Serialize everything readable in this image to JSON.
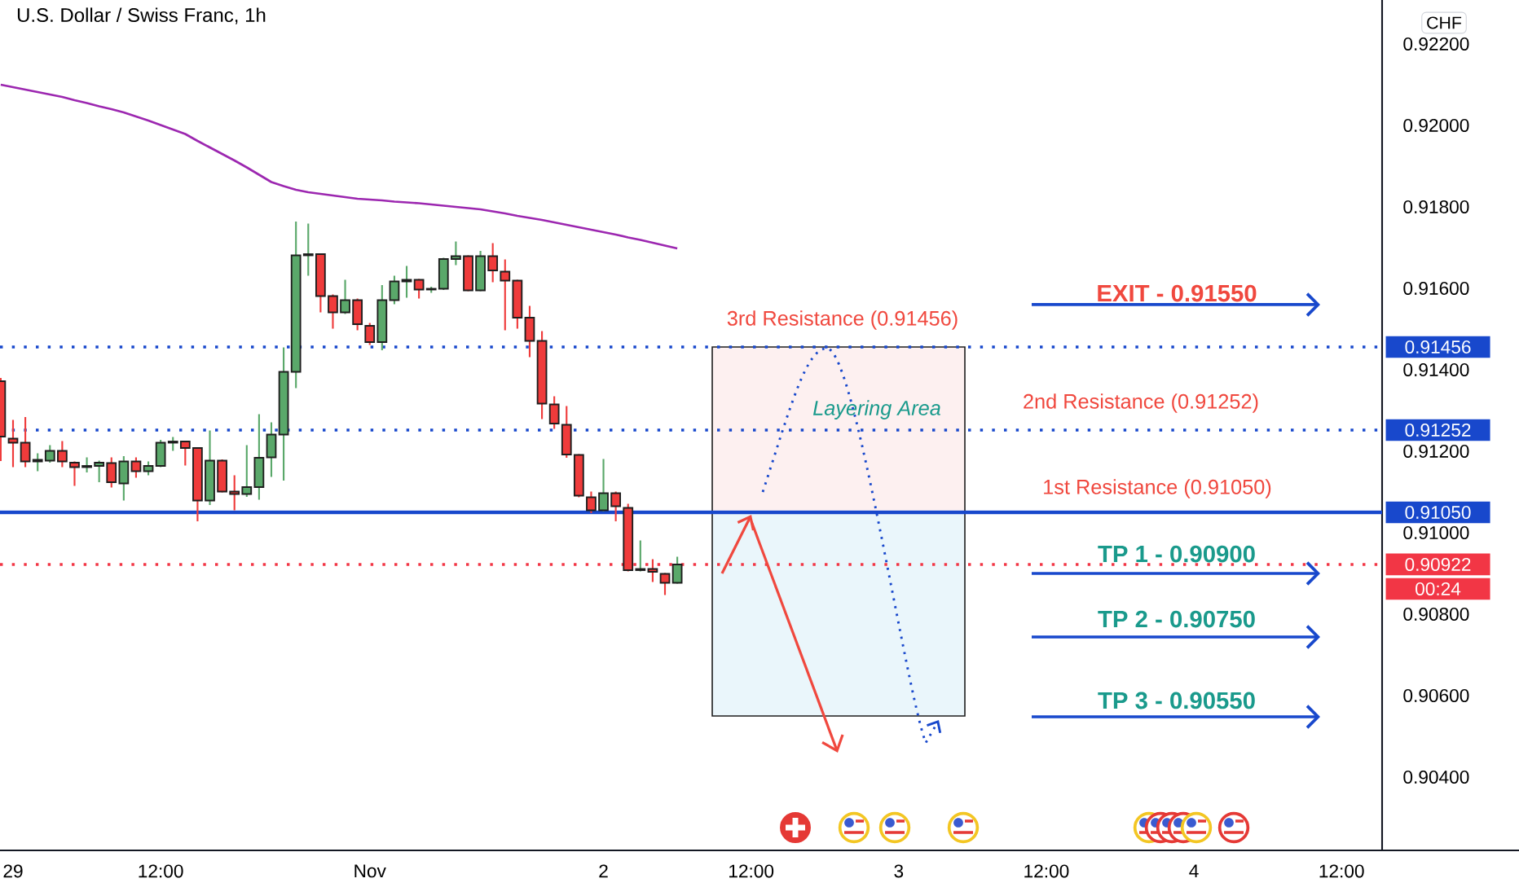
{
  "chart_data": {
    "type": "candlestick",
    "title": "U.S. Dollar / Swiss Franc, 1h",
    "categories": [
      null,
      "29",
      null,
      null,
      null,
      null,
      null,
      null,
      null,
      null,
      null,
      null,
      null,
      "12:00",
      null,
      null,
      null,
      null,
      null,
      null,
      null,
      null,
      null,
      null,
      null,
      null,
      null,
      null,
      null,
      null,
      "Nov",
      null,
      null,
      null,
      null,
      null,
      null,
      null,
      null,
      null,
      null,
      null,
      null,
      null,
      null,
      null,
      null,
      null,
      null,
      "2",
      null,
      null,
      null,
      null,
      null,
      null,
      null,
      null,
      null,
      null,
      null,
      "12:00",
      null,
      null,
      null,
      null,
      null,
      null,
      null,
      null,
      null,
      null,
      null,
      "3",
      null,
      null,
      null,
      null,
      null,
      null,
      null,
      null,
      null,
      null,
      null,
      "12:00",
      null,
      null,
      null,
      null,
      null,
      null,
      null,
      null,
      null,
      null,
      null,
      "4",
      null,
      null,
      null,
      null,
      null,
      null,
      null,
      null,
      null,
      null,
      null,
      "12:00",
      null,
      null,
      null
    ],
    "ohlc": [
      [
        0.91372,
        0.9138,
        0.91176,
        0.91236
      ],
      [
        0.91231,
        0.91277,
        0.91161,
        0.91221
      ],
      [
        0.91221,
        0.91284,
        0.91161,
        0.91175
      ],
      [
        0.91175,
        0.91195,
        0.91151,
        0.91179
      ],
      [
        0.91177,
        0.91215,
        0.91172,
        0.91201
      ],
      [
        0.91201,
        0.91225,
        0.91161,
        0.91175
      ],
      [
        0.91172,
        0.91175,
        0.91115,
        0.91161
      ],
      [
        0.91161,
        0.91185,
        0.91148,
        0.91164
      ],
      [
        0.91164,
        0.91177,
        0.91124,
        0.91172
      ],
      [
        0.91171,
        0.91185,
        0.91111,
        0.91124
      ],
      [
        0.91121,
        0.91188,
        0.91079,
        0.91175
      ],
      [
        0.91175,
        0.91185,
        0.91135,
        0.91151
      ],
      [
        0.91151,
        0.91175,
        0.91141,
        0.91164
      ],
      [
        0.91164,
        0.91228,
        0.91161,
        0.91221
      ],
      [
        0.91221,
        0.91235,
        0.91201,
        0.91224
      ],
      [
        0.91224,
        0.91226,
        0.91165,
        0.91208
      ],
      [
        0.91208,
        0.9121,
        0.91028,
        0.91079
      ],
      [
        0.91079,
        0.91251,
        0.91068,
        0.91177
      ],
      [
        0.91177,
        0.9118,
        0.91099,
        0.91101
      ],
      [
        0.91101,
        0.91141,
        0.91055,
        0.91095
      ],
      [
        0.91095,
        0.91215,
        0.91088,
        0.91112
      ],
      [
        0.91112,
        0.91291,
        0.91081,
        0.91184
      ],
      [
        0.91185,
        0.91271,
        0.91137,
        0.91241
      ],
      [
        0.91241,
        0.91455,
        0.91128,
        0.91395
      ],
      [
        0.91395,
        0.91764,
        0.91355,
        0.91681
      ],
      [
        0.91681,
        0.91759,
        0.91631,
        0.91684
      ],
      [
        0.91684,
        0.91686,
        0.91541,
        0.91581
      ],
      [
        0.91581,
        0.91585,
        0.91501,
        0.91541
      ],
      [
        0.91541,
        0.91621,
        0.91537,
        0.91571
      ],
      [
        0.91571,
        0.91575,
        0.91497,
        0.91512
      ],
      [
        0.91508,
        0.91515,
        0.91461,
        0.91468
      ],
      [
        0.91468,
        0.91608,
        0.91448,
        0.91571
      ],
      [
        0.91571,
        0.91631,
        0.91561,
        0.91617
      ],
      [
        0.91617,
        0.91655,
        0.91577,
        0.91621
      ],
      [
        0.91621,
        0.91623,
        0.91575,
        0.91597
      ],
      [
        0.91597,
        0.91604,
        0.91589,
        0.91599
      ],
      [
        0.91599,
        0.91675,
        0.91596,
        0.91672
      ],
      [
        0.91672,
        0.91715,
        0.91657,
        0.91679
      ],
      [
        0.91679,
        0.91681,
        0.91593,
        0.91595
      ],
      [
        0.91595,
        0.91692,
        0.91593,
        0.91679
      ],
      [
        0.91679,
        0.91711,
        0.91615,
        0.91644
      ],
      [
        0.91641,
        0.91671,
        0.91497,
        0.91619
      ],
      [
        0.91619,
        0.91621,
        0.91501,
        0.91528
      ],
      [
        0.91528,
        0.91557,
        0.91431,
        0.91471
      ],
      [
        0.91471,
        0.91495,
        0.91279,
        0.91317
      ],
      [
        0.91315,
        0.91335,
        0.91255,
        0.91268
      ],
      [
        0.91265,
        0.91311,
        0.91184,
        0.91192
      ],
      [
        0.91191,
        0.91193,
        0.91087,
        0.91091
      ],
      [
        0.91087,
        0.91101,
        0.91048,
        0.91055
      ],
      [
        0.91055,
        0.91181,
        0.91052,
        0.91097
      ],
      [
        0.91097,
        0.91101,
        0.91028,
        0.91065
      ],
      [
        0.91061,
        0.91071,
        0.90905,
        0.90908
      ],
      [
        0.90908,
        0.90981,
        0.90905,
        0.90911
      ],
      [
        0.90911,
        0.90935,
        0.90879,
        0.90904
      ],
      [
        0.90899,
        0.90901,
        0.90847,
        0.90877
      ],
      [
        0.90877,
        0.90941,
        0.90875,
        0.90922
      ],
      null,
      null,
      null,
      null,
      null,
      null,
      null,
      null,
      null,
      null,
      null,
      null,
      null,
      null,
      null,
      null,
      null,
      null,
      null,
      null,
      null,
      null,
      null,
      null,
      null,
      null,
      null,
      null,
      null,
      null,
      null,
      null,
      null,
      null,
      null,
      null,
      null,
      null,
      null,
      null,
      null,
      null,
      null,
      null,
      null,
      null,
      null,
      null,
      null,
      null,
      null,
      null,
      null,
      null,
      null,
      null,
      null
    ],
    "series": [
      {
        "type": "line",
        "color": "#9c27b0",
        "values": [
          0.921,
          0.92094,
          0.92088,
          0.92082,
          0.92076,
          0.9207,
          0.92062,
          0.92055,
          0.92047,
          0.9204,
          0.92032,
          0.92022,
          0.92012,
          0.92001,
          0.9199,
          0.91979,
          0.91962,
          0.91946,
          0.9193,
          0.91914,
          0.91897,
          0.91879,
          0.91861,
          0.91851,
          0.91842,
          0.91836,
          0.91832,
          0.91828,
          0.91824,
          0.9182,
          0.91818,
          0.91816,
          0.91813,
          0.91811,
          0.91809,
          0.91806,
          0.91803,
          0.918,
          0.91797,
          0.91794,
          0.91789,
          0.91784,
          0.91778,
          0.91773,
          0.91768,
          0.91762,
          0.91756,
          0.9175,
          0.91744,
          0.91738,
          0.91732,
          0.91725,
          0.91719,
          0.91712,
          0.91705,
          0.91698,
          null,
          null,
          null,
          null,
          null,
          null,
          null,
          null,
          null,
          null,
          null,
          null,
          null,
          null,
          null,
          null,
          null,
          null,
          null,
          null,
          null,
          null,
          null,
          null,
          null,
          null,
          null,
          null,
          null,
          null,
          null,
          null,
          null,
          null,
          null,
          null,
          null,
          null,
          null,
          null,
          null,
          null,
          null,
          null,
          null,
          null,
          null,
          null,
          null,
          null,
          null,
          null,
          null,
          null,
          null,
          null,
          null
        ]
      }
    ],
    "ylim": [
      0.9022,
      0.92308
    ],
    "yticks": [
      {
        "value": 0.904,
        "label": "0.90400"
      },
      {
        "value": 0.906,
        "label": "0.90600"
      },
      {
        "value": 0.908,
        "label": "0.90800"
      },
      {
        "value": 0.91,
        "label": "0.91000"
      },
      {
        "value": 0.912,
        "label": "0.91200"
      },
      {
        "value": 0.914,
        "label": "0.91400"
      },
      {
        "value": 0.916,
        "label": "0.91600"
      },
      {
        "value": 0.918,
        "label": "0.91800"
      },
      {
        "value": 0.92,
        "label": "0.92000"
      },
      {
        "value": 0.922,
        "label": "0.92200"
      }
    ],
    "ref_lines": [
      {
        "axis": "y",
        "value": 0.91456,
        "label": "0.91456",
        "color": "#1848cc",
        "line_style": "dotted"
      },
      {
        "axis": "y",
        "value": 0.91252,
        "label": "0.91252",
        "color": "#1848cc",
        "line_style": "dotted"
      },
      {
        "axis": "y",
        "value": 0.9105,
        "label": "0.91050",
        "color": "#1848cc",
        "line_style": "solid"
      },
      {
        "axis": "y",
        "value": 0.90922,
        "label": "0.90922",
        "color": "#f23645",
        "line_style": "dotted"
      }
    ],
    "bands": [
      {
        "axis": "y",
        "from": 0.9105,
        "to": 0.91456,
        "label": "Layering Area",
        "color": "#fdf0f0"
      },
      {
        "axis": "y",
        "from": 0.9055,
        "to": 0.9105,
        "color": "#eaf6fb"
      }
    ],
    "annotations": [
      "CHF",
      "00:24",
      {
        "text": "3rd Resistance  (0.91456)",
        "y": 0.91456
      },
      {
        "text": "2nd Resistance (0.91252)",
        "y": 0.91252
      },
      {
        "text": "1st Resistance (0.91050)",
        "y": 0.9105
      },
      "EXIT - 0.91550",
      "TP 1 - 0.90900",
      "TP 2 - 0.90750",
      "TP 3 - 0.90550"
    ]
  }
}
